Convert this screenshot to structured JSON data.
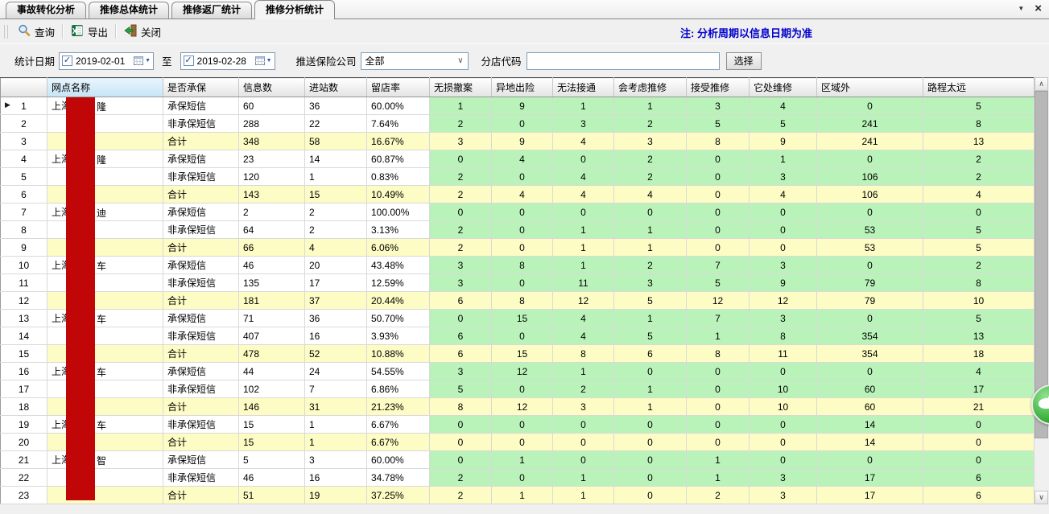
{
  "tabs": [
    {
      "label": "事故转化分析",
      "active": false
    },
    {
      "label": "推修总体统计",
      "active": false
    },
    {
      "label": "推修返厂统计",
      "active": false
    },
    {
      "label": "推修分析统计",
      "active": true
    }
  ],
  "window": {
    "tab_menu_icon": "▼",
    "close_icon": "×"
  },
  "toolbar": {
    "buttons": [
      {
        "label": "查询",
        "icon": "magnifier-icon"
      },
      {
        "label": "导出",
        "icon": "excel-icon"
      },
      {
        "label": "关闭",
        "icon": "exit-icon"
      }
    ],
    "note": "注: 分析周期以信息日期为准"
  },
  "filters": {
    "date_label": "统计日期",
    "date_from": "2019-02-01",
    "to_label": "至",
    "date_to": "2019-02-28",
    "insurer_label": "推送保险公司",
    "insurer_value": "全部",
    "branch_label": "分店代码",
    "branch_value": "",
    "select_button": "选择"
  },
  "icons": {
    "check": "✓",
    "date_dropdown": "▼",
    "combo_chevron": "∨",
    "scroll_up": "∧",
    "scroll_down": "∨",
    "row_marker": "▶"
  },
  "colors": {
    "note_blue": "#0000cc",
    "green_cell": "#baf3ba",
    "yellow_total": "#fcfcc4",
    "name_header_blue": "#c6e4f6",
    "redaction_red": "#c00606"
  },
  "table": {
    "headers": [
      "",
      "网点名称",
      "是否承保",
      "信息数",
      "进站数",
      "留店率",
      "无损撤案",
      "异地出险",
      "无法接通",
      "会考虑推修",
      "接受推修",
      "它处维修",
      "区域外",
      "路程太远"
    ],
    "rows": [
      {
        "num": "1",
        "marker": true,
        "total": false,
        "name_prefix": "上海",
        "name_suffix": "隆",
        "insured": "承保短信",
        "info": "60",
        "inbound": "36",
        "rate": "60.00%",
        "values": [
          1,
          9,
          1,
          1,
          3,
          4,
          0,
          5
        ]
      },
      {
        "num": "2",
        "marker": false,
        "total": false,
        "name_prefix": "",
        "name_suffix": "",
        "insured": "非承保短信",
        "info": "288",
        "inbound": "22",
        "rate": "7.64%",
        "values": [
          2,
          0,
          3,
          2,
          5,
          5,
          241,
          8
        ]
      },
      {
        "num": "3",
        "marker": false,
        "total": true,
        "name_prefix": "",
        "name_suffix": "",
        "insured": "合计",
        "info": "348",
        "inbound": "58",
        "rate": "16.67%",
        "values": [
          3,
          9,
          4,
          3,
          8,
          9,
          241,
          13
        ]
      },
      {
        "num": "4",
        "marker": false,
        "total": false,
        "name_prefix": "上海",
        "name_suffix": "隆",
        "insured": "承保短信",
        "info": "23",
        "inbound": "14",
        "rate": "60.87%",
        "values": [
          0,
          4,
          0,
          2,
          0,
          1,
          0,
          2
        ]
      },
      {
        "num": "5",
        "marker": false,
        "total": false,
        "name_prefix": "",
        "name_suffix": "",
        "insured": "非承保短信",
        "info": "120",
        "inbound": "1",
        "rate": "0.83%",
        "values": [
          2,
          0,
          4,
          2,
          0,
          3,
          106,
          2
        ]
      },
      {
        "num": "6",
        "marker": false,
        "total": true,
        "name_prefix": "",
        "name_suffix": "",
        "insured": "合计",
        "info": "143",
        "inbound": "15",
        "rate": "10.49%",
        "values": [
          2,
          4,
          4,
          4,
          0,
          4,
          106,
          4
        ]
      },
      {
        "num": "7",
        "marker": false,
        "total": false,
        "name_prefix": "上海",
        "name_suffix": "迪",
        "insured": "承保短信",
        "info": "2",
        "inbound": "2",
        "rate": "100.00%",
        "values": [
          0,
          0,
          0,
          0,
          0,
          0,
          0,
          0
        ]
      },
      {
        "num": "8",
        "marker": false,
        "total": false,
        "name_prefix": "",
        "name_suffix": "",
        "insured": "非承保短信",
        "info": "64",
        "inbound": "2",
        "rate": "3.13%",
        "values": [
          2,
          0,
          1,
          1,
          0,
          0,
          53,
          5
        ]
      },
      {
        "num": "9",
        "marker": false,
        "total": true,
        "name_prefix": "",
        "name_suffix": "",
        "insured": "合计",
        "info": "66",
        "inbound": "4",
        "rate": "6.06%",
        "values": [
          2,
          0,
          1,
          1,
          0,
          0,
          53,
          5
        ]
      },
      {
        "num": "10",
        "marker": false,
        "total": false,
        "name_prefix": "上海",
        "name_suffix": "车",
        "insured": "承保短信",
        "info": "46",
        "inbound": "20",
        "rate": "43.48%",
        "values": [
          3,
          8,
          1,
          2,
          7,
          3,
          0,
          2
        ]
      },
      {
        "num": "11",
        "marker": false,
        "total": false,
        "name_prefix": "",
        "name_suffix": "",
        "insured": "非承保短信",
        "info": "135",
        "inbound": "17",
        "rate": "12.59%",
        "values": [
          3,
          0,
          11,
          3,
          5,
          9,
          79,
          8
        ]
      },
      {
        "num": "12",
        "marker": false,
        "total": true,
        "name_prefix": "",
        "name_suffix": "",
        "insured": "合计",
        "info": "181",
        "inbound": "37",
        "rate": "20.44%",
        "values": [
          6,
          8,
          12,
          5,
          12,
          12,
          79,
          10
        ]
      },
      {
        "num": "13",
        "marker": false,
        "total": false,
        "name_prefix": "上海",
        "name_suffix": "车",
        "insured": "承保短信",
        "info": "71",
        "inbound": "36",
        "rate": "50.70%",
        "values": [
          0,
          15,
          4,
          1,
          7,
          3,
          0,
          5
        ]
      },
      {
        "num": "14",
        "marker": false,
        "total": false,
        "name_prefix": "",
        "name_suffix": "",
        "insured": "非承保短信",
        "info": "407",
        "inbound": "16",
        "rate": "3.93%",
        "values": [
          6,
          0,
          4,
          5,
          1,
          8,
          354,
          13
        ]
      },
      {
        "num": "15",
        "marker": false,
        "total": true,
        "name_prefix": "",
        "name_suffix": "",
        "insured": "合计",
        "info": "478",
        "inbound": "52",
        "rate": "10.88%",
        "values": [
          6,
          15,
          8,
          6,
          8,
          11,
          354,
          18
        ]
      },
      {
        "num": "16",
        "marker": false,
        "total": false,
        "name_prefix": "上海",
        "name_suffix": "车",
        "insured": "承保短信",
        "info": "44",
        "inbound": "24",
        "rate": "54.55%",
        "values": [
          3,
          12,
          1,
          0,
          0,
          0,
          0,
          4
        ]
      },
      {
        "num": "17",
        "marker": false,
        "total": false,
        "name_prefix": "",
        "name_suffix": "",
        "insured": "非承保短信",
        "info": "102",
        "inbound": "7",
        "rate": "6.86%",
        "values": [
          5,
          0,
          2,
          1,
          0,
          10,
          60,
          17
        ]
      },
      {
        "num": "18",
        "marker": false,
        "total": true,
        "name_prefix": "",
        "name_suffix": "",
        "insured": "合计",
        "info": "146",
        "inbound": "31",
        "rate": "21.23%",
        "values": [
          8,
          12,
          3,
          1,
          0,
          10,
          60,
          21
        ]
      },
      {
        "num": "19",
        "marker": false,
        "total": false,
        "name_prefix": "上海",
        "name_suffix": "车",
        "insured": "非承保短信",
        "info": "15",
        "inbound": "1",
        "rate": "6.67%",
        "values": [
          0,
          0,
          0,
          0,
          0,
          0,
          14,
          0
        ]
      },
      {
        "num": "20",
        "marker": false,
        "total": true,
        "name_prefix": "",
        "name_suffix": "",
        "insured": "合计",
        "info": "15",
        "inbound": "1",
        "rate": "6.67%",
        "values": [
          0,
          0,
          0,
          0,
          0,
          0,
          14,
          0
        ]
      },
      {
        "num": "21",
        "marker": false,
        "total": false,
        "name_prefix": "上海",
        "name_suffix": "智",
        "insured": "承保短信",
        "info": "5",
        "inbound": "3",
        "rate": "60.00%",
        "values": [
          0,
          1,
          0,
          0,
          1,
          0,
          0,
          0
        ]
      },
      {
        "num": "22",
        "marker": false,
        "total": false,
        "name_prefix": "",
        "name_suffix": "",
        "insured": "非承保短信",
        "info": "46",
        "inbound": "16",
        "rate": "34.78%",
        "values": [
          2,
          0,
          1,
          0,
          1,
          3,
          17,
          6
        ]
      },
      {
        "num": "23",
        "marker": false,
        "total": true,
        "name_prefix": "",
        "name_suffix": "",
        "insured": "合计",
        "info": "51",
        "inbound": "19",
        "rate": "37.25%",
        "values": [
          2,
          1,
          1,
          0,
          2,
          3,
          17,
          6
        ]
      }
    ]
  }
}
